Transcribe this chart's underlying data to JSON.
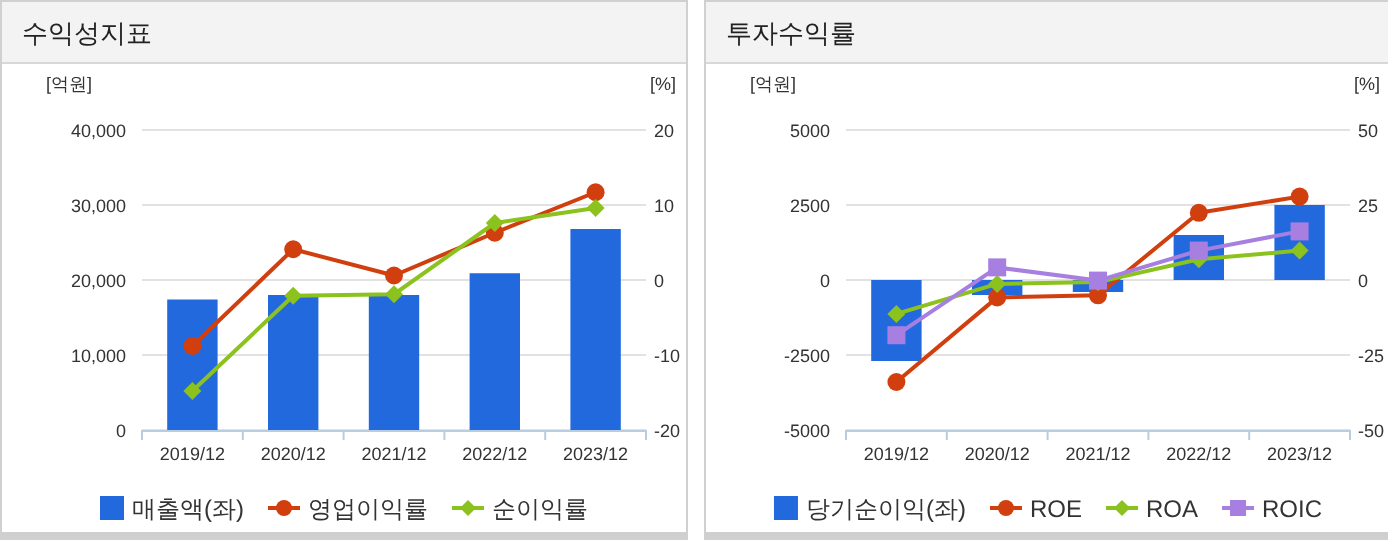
{
  "chart_data": [
    {
      "type": "bar",
      "title": "수익성지표",
      "ylabel": "[억원]",
      "y2label": "[%]",
      "categories": [
        "2019/12",
        "2020/12",
        "2021/12",
        "2022/12",
        "2023/12"
      ],
      "series": [
        {
          "name": "매출액(좌)",
          "color": "#2369de",
          "values": [
            17400,
            18000,
            18000,
            20900,
            26800
          ]
        },
        {
          "name": "영업이익률",
          "type": "line",
          "axis": "y2",
          "color": "#d23f0e",
          "marker": "circle",
          "values": [
            -8.8,
            4.1,
            0.6,
            6.3,
            11.7
          ]
        },
        {
          "name": "순이익률",
          "type": "line",
          "axis": "y2",
          "color": "#8cc21e",
          "marker": "diamond",
          "values": [
            -14.8,
            -2.1,
            -1.9,
            7.6,
            9.6
          ]
        }
      ],
      "ylim": [
        0,
        40000
      ],
      "yticks": [
        0,
        {
          "value": 10000,
          "label": "10,000"
        },
        {
          "value": 20000,
          "label": "20,000"
        },
        {
          "value": 30000,
          "label": "30,000"
        },
        {
          "value": 40000,
          "label": "40,000"
        }
      ],
      "y2lim": [
        -20,
        20
      ],
      "y2ticks": [
        -20,
        -10,
        0,
        10,
        20
      ],
      "grid": "y",
      "legend": "bottom"
    },
    {
      "type": "bar",
      "title": "투자수익률",
      "ylabel": "[억원]",
      "y2label": "[%]",
      "categories": [
        "2019/12",
        "2020/12",
        "2021/12",
        "2022/12",
        "2023/12"
      ],
      "series": [
        {
          "name": "당기순이익(좌)",
          "color": "#2369de",
          "values": [
            -2700,
            -500,
            -400,
            1500,
            2500
          ]
        },
        {
          "name": "ROE",
          "type": "line",
          "axis": "y2",
          "color": "#d23f0e",
          "marker": "circle",
          "values": [
            -34,
            -5.8,
            -5.1,
            22.4,
            27.8
          ]
        },
        {
          "name": "ROA",
          "type": "line",
          "axis": "y2",
          "color": "#8cc21e",
          "marker": "diamond",
          "values": [
            -11.3,
            -1.3,
            -0.7,
            6.9,
            9.8
          ]
        },
        {
          "name": "ROIC",
          "type": "line",
          "axis": "y2",
          "color": "#a77fe0",
          "marker": "square",
          "values": [
            -18.4,
            4.2,
            -0.2,
            9.8,
            16.2
          ]
        }
      ],
      "ylim": [
        -5000,
        5000
      ],
      "yticks": [
        -5000,
        -2500,
        0,
        2500,
        5000
      ],
      "y2lim": [
        -50,
        50
      ],
      "y2ticks": [
        -50,
        -25,
        0,
        25,
        50
      ],
      "grid": "y",
      "legend": "bottom"
    }
  ]
}
